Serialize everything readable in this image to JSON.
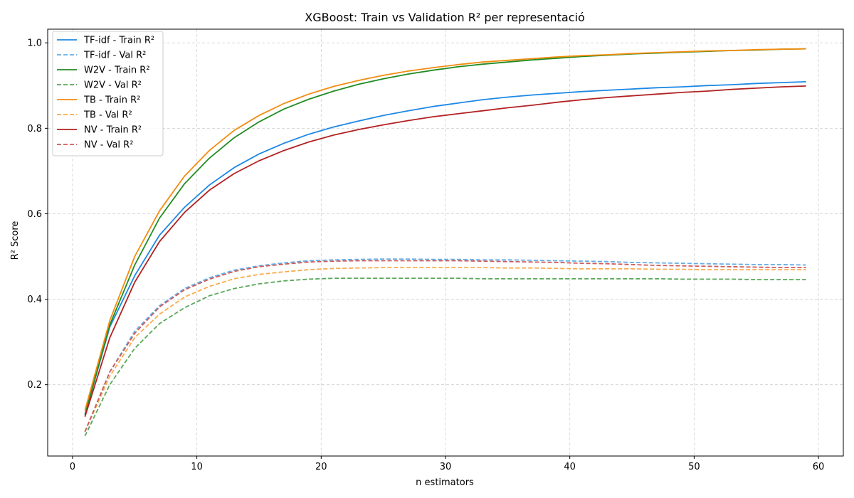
{
  "chart_data": {
    "type": "line",
    "title": "XGBoost: Train vs Validation R² per representació",
    "xlabel": "n estimators",
    "ylabel": "R² Score",
    "xlim": [
      -2.0,
      62.0
    ],
    "ylim": [
      0.033,
      1.032
    ],
    "x_ticks": [
      0,
      10,
      20,
      30,
      40,
      50,
      60
    ],
    "y_ticks": [
      0.2,
      0.4,
      0.6,
      0.8,
      1.0
    ],
    "y_tick_labels": [
      "0.2",
      "0.4",
      "0.6",
      "0.8",
      "1.0"
    ],
    "grid": true,
    "legend_position": "top-left",
    "x": [
      1,
      3,
      5,
      7,
      9,
      11,
      13,
      15,
      17,
      19,
      21,
      23,
      25,
      27,
      29,
      31,
      33,
      35,
      37,
      39,
      41,
      43,
      45,
      47,
      49,
      51,
      53,
      55,
      57,
      59
    ],
    "series": [
      {
        "name": "TF-idf - Train R²",
        "color": "#1e88e5",
        "dashed": false,
        "values": [
          0.13,
          0.335,
          0.455,
          0.55,
          0.615,
          0.667,
          0.708,
          0.74,
          0.765,
          0.786,
          0.803,
          0.817,
          0.83,
          0.841,
          0.851,
          0.859,
          0.867,
          0.873,
          0.878,
          0.882,
          0.886,
          0.889,
          0.892,
          0.895,
          0.897,
          0.9,
          0.902,
          0.905,
          0.907,
          0.909
        ]
      },
      {
        "name": "TF-idf - Val R²",
        "color": "#64aee8",
        "dashed": true,
        "values": [
          0.09,
          0.23,
          0.325,
          0.385,
          0.425,
          0.45,
          0.468,
          0.478,
          0.485,
          0.49,
          0.492,
          0.493,
          0.494,
          0.494,
          0.493,
          0.493,
          0.492,
          0.492,
          0.491,
          0.49,
          0.489,
          0.488,
          0.486,
          0.485,
          0.484,
          0.483,
          0.482,
          0.481,
          0.481,
          0.48
        ]
      },
      {
        "name": "W2V - Train R²",
        "color": "#228b22",
        "dashed": false,
        "values": [
          0.13,
          0.34,
          0.48,
          0.59,
          0.67,
          0.73,
          0.778,
          0.815,
          0.845,
          0.868,
          0.887,
          0.903,
          0.916,
          0.927,
          0.936,
          0.944,
          0.95,
          0.955,
          0.96,
          0.964,
          0.968,
          0.971,
          0.974,
          0.976,
          0.978,
          0.98,
          0.982,
          0.983,
          0.985,
          0.986
        ]
      },
      {
        "name": "W2V - Val R²",
        "color": "#5aa85a",
        "dashed": true,
        "values": [
          0.08,
          0.2,
          0.285,
          0.343,
          0.38,
          0.408,
          0.425,
          0.436,
          0.443,
          0.447,
          0.449,
          0.449,
          0.449,
          0.449,
          0.449,
          0.449,
          0.448,
          0.448,
          0.448,
          0.448,
          0.448,
          0.448,
          0.448,
          0.448,
          0.447,
          0.447,
          0.447,
          0.446,
          0.446,
          0.446
        ]
      },
      {
        "name": "TB - Train R²",
        "color": "#f28c0f",
        "dashed": false,
        "values": [
          0.14,
          0.35,
          0.5,
          0.607,
          0.688,
          0.748,
          0.795,
          0.83,
          0.858,
          0.88,
          0.898,
          0.912,
          0.924,
          0.934,
          0.942,
          0.949,
          0.955,
          0.959,
          0.963,
          0.967,
          0.97,
          0.972,
          0.975,
          0.977,
          0.979,
          0.981,
          0.982,
          0.984,
          0.985,
          0.986
        ]
      },
      {
        "name": "TB - Val R²",
        "color": "#f9ab4e",
        "dashed": true,
        "values": [
          0.09,
          0.22,
          0.31,
          0.365,
          0.405,
          0.43,
          0.448,
          0.458,
          0.464,
          0.469,
          0.472,
          0.473,
          0.474,
          0.474,
          0.474,
          0.474,
          0.474,
          0.473,
          0.473,
          0.472,
          0.471,
          0.471,
          0.471,
          0.47,
          0.47,
          0.469,
          0.469,
          0.469,
          0.469,
          0.469
        ]
      },
      {
        "name": "NV - Train R²",
        "color": "#b22222",
        "dashed": false,
        "values": [
          0.125,
          0.31,
          0.44,
          0.535,
          0.603,
          0.655,
          0.694,
          0.724,
          0.748,
          0.768,
          0.784,
          0.797,
          0.808,
          0.818,
          0.827,
          0.834,
          0.841,
          0.848,
          0.854,
          0.861,
          0.867,
          0.872,
          0.876,
          0.88,
          0.884,
          0.887,
          0.891,
          0.894,
          0.897,
          0.899
        ]
      },
      {
        "name": "NV - Val R²",
        "color": "#cd5c5c",
        "dashed": true,
        "values": [
          0.09,
          0.23,
          0.32,
          0.382,
          0.422,
          0.447,
          0.465,
          0.476,
          0.482,
          0.487,
          0.489,
          0.49,
          0.49,
          0.49,
          0.49,
          0.49,
          0.489,
          0.488,
          0.487,
          0.486,
          0.484,
          0.483,
          0.481,
          0.479,
          0.478,
          0.477,
          0.476,
          0.475,
          0.474,
          0.474
        ]
      }
    ]
  }
}
